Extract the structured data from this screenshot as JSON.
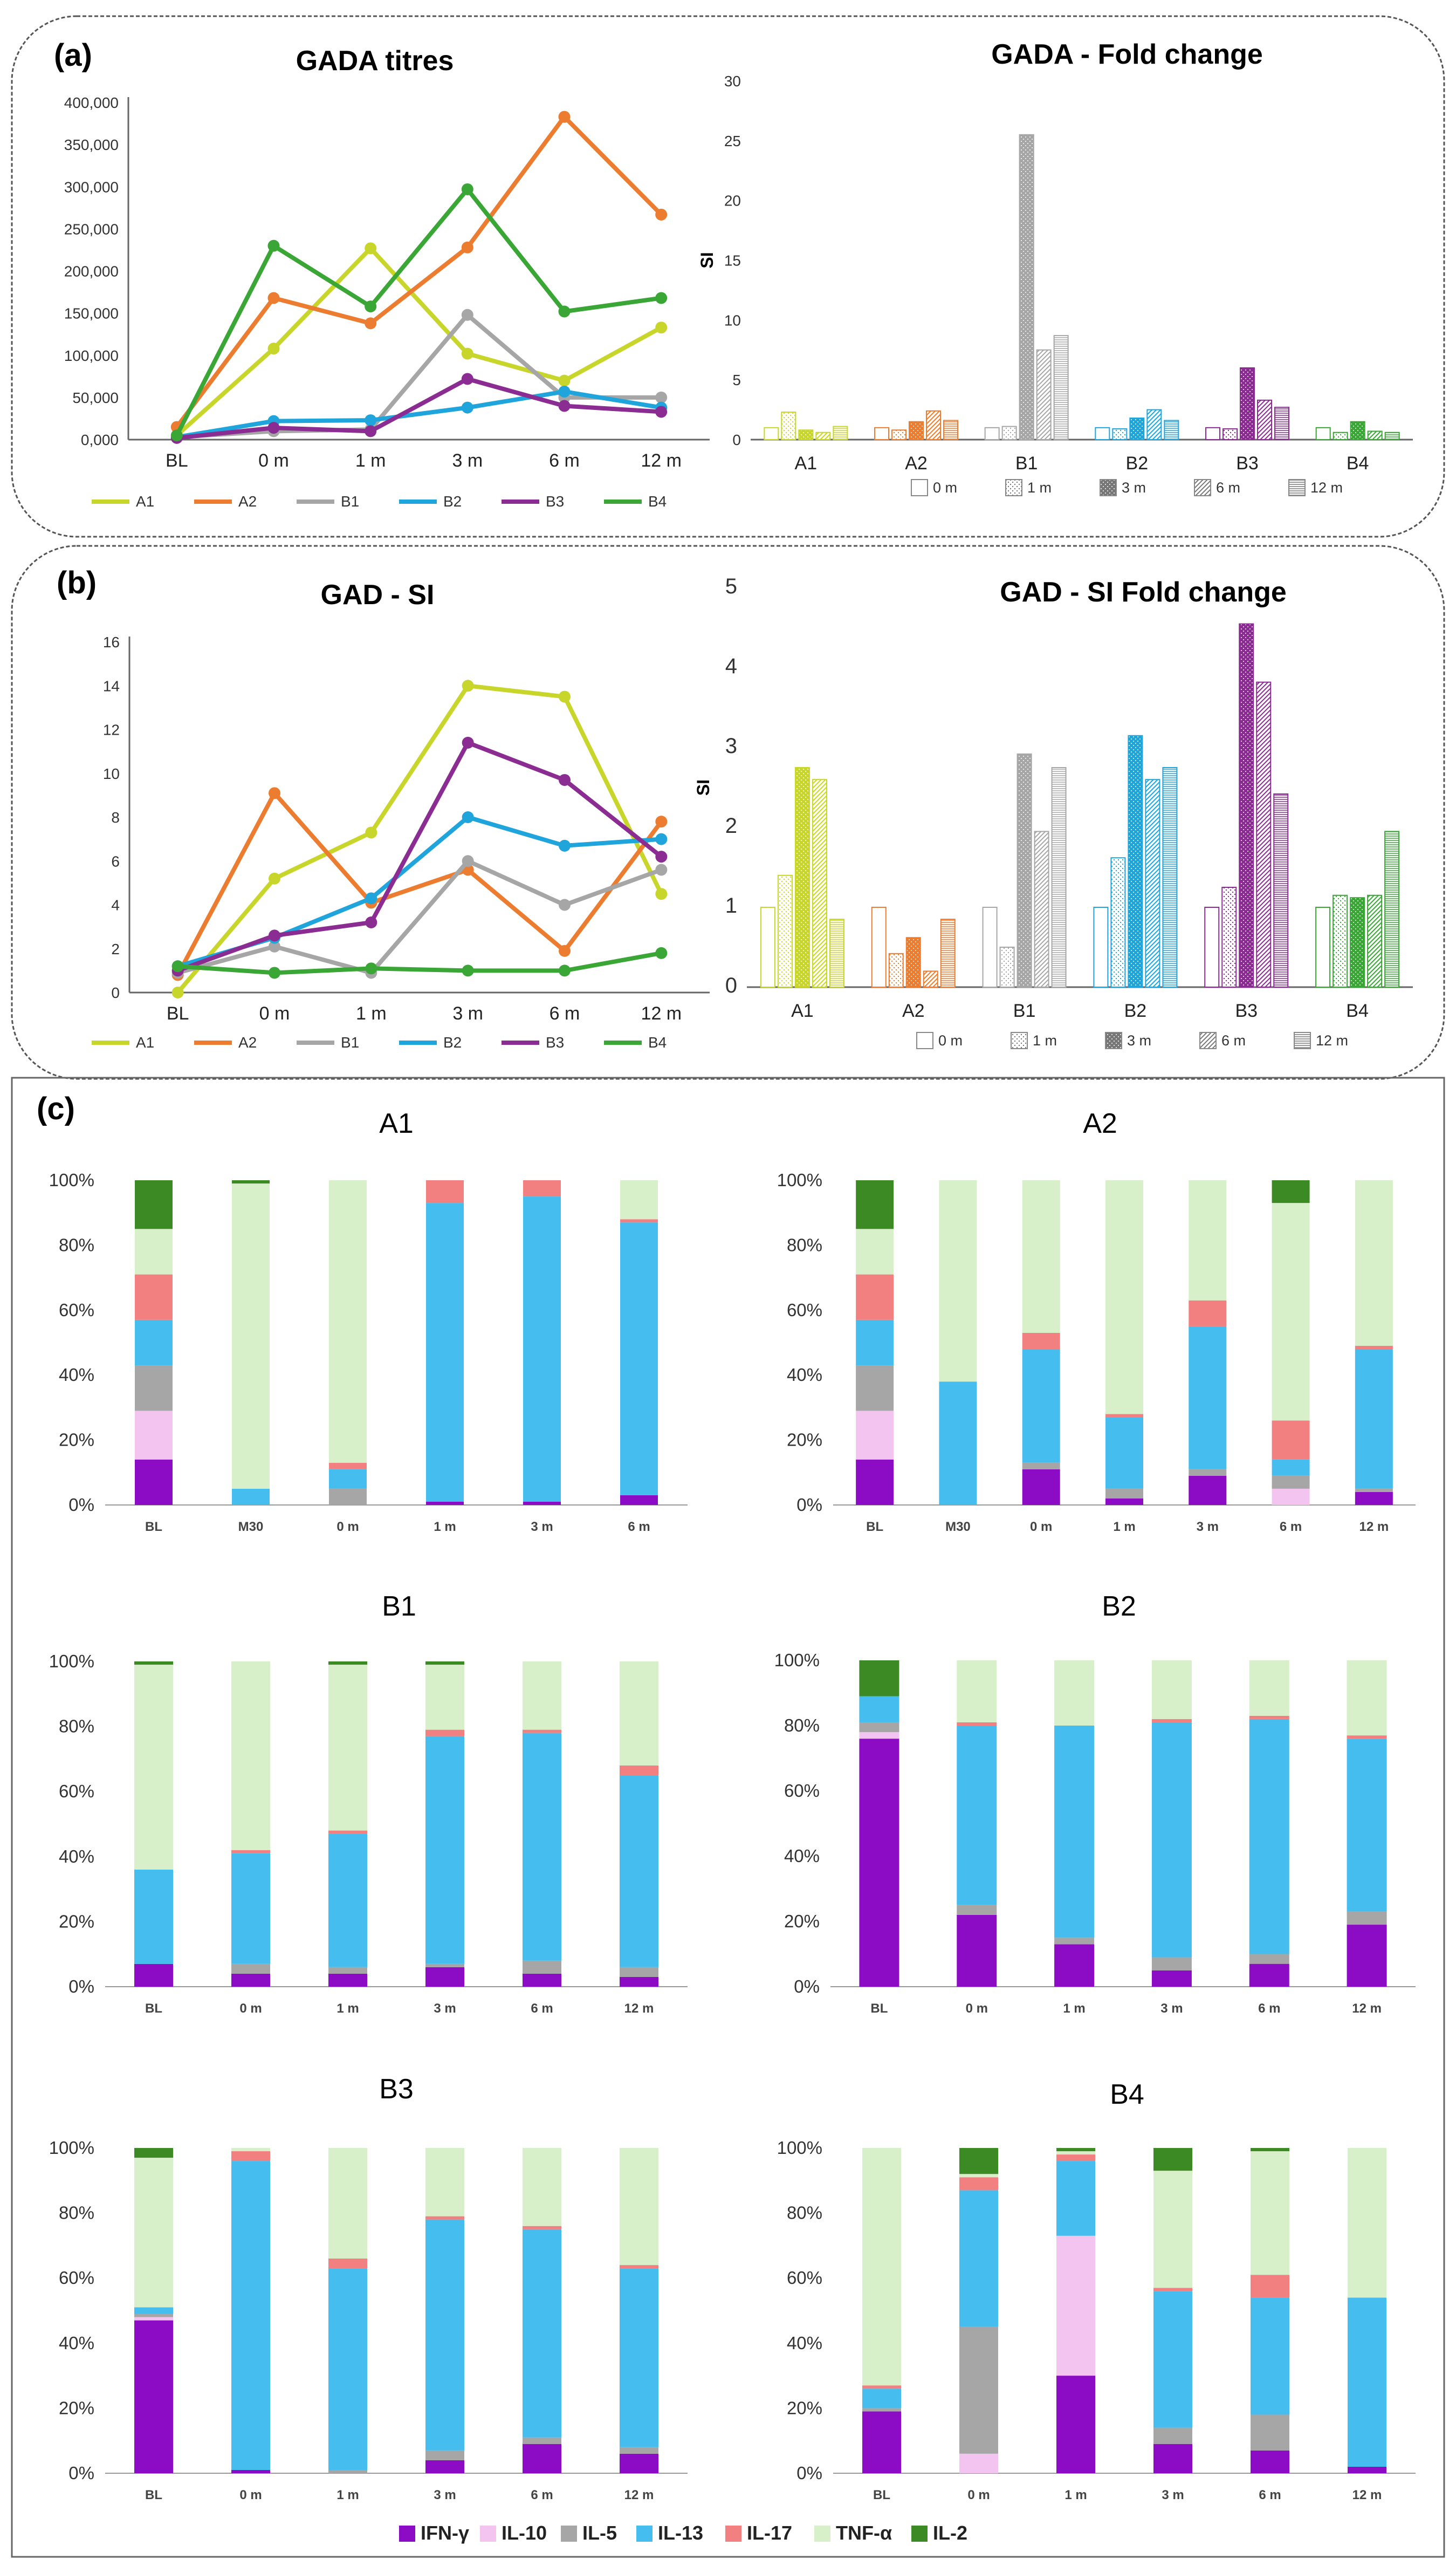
{
  "panels": {
    "a": "(a)",
    "b": "(b)",
    "c": "(c)"
  },
  "colors": {
    "A1": "#c8d62b",
    "A2": "#ec7c30",
    "B1": "#a6a6a6",
    "B2": "#1fa5dc",
    "B3": "#8a2c91",
    "B4": "#3aa635",
    "IFN-γ": "#8b0cc4",
    "IL-10": "#f3c4ef",
    "IL-5": "#a6a6a6",
    "IL-13": "#45bdee",
    "IL-17": "#f28080",
    "TNF-α": "#d8f0c9",
    "IL-2": "#3b8a23"
  },
  "chart_data": [
    {
      "id": "gada-titres",
      "type": "line",
      "title": "GADA titres",
      "categories": [
        "BL",
        "0 m",
        "1 m",
        "3 m",
        "6 m",
        "12 m"
      ],
      "ylim": [
        0,
        400000
      ],
      "yticks": [
        0,
        50000,
        100000,
        150000,
        200000,
        250000,
        300000,
        350000,
        400000
      ],
      "ytick_labels": [
        "0,000",
        "50,000",
        "100,000",
        "150,000",
        "200,000",
        "250,000",
        "300,000",
        "350,000",
        "400,000"
      ],
      "series": [
        {
          "name": "A1",
          "values": [
            5000,
            108000,
            227000,
            102000,
            70000,
            133000
          ]
        },
        {
          "name": "A2",
          "values": [
            15000,
            168000,
            138000,
            228000,
            383000,
            267000
          ]
        },
        {
          "name": "B1",
          "values": [
            3000,
            10000,
            12000,
            148000,
            50000,
            50000
          ]
        },
        {
          "name": "B2",
          "values": [
            3000,
            22000,
            23000,
            38000,
            57000,
            38000
          ]
        },
        {
          "name": "B3",
          "values": [
            2000,
            14000,
            10000,
            72000,
            40000,
            33000
          ]
        },
        {
          "name": "B4",
          "values": [
            5000,
            230000,
            158000,
            297000,
            152000,
            168000
          ]
        }
      ]
    },
    {
      "id": "gada-fold",
      "type": "bar",
      "title": "GADA - Fold change",
      "ylabel": "SI",
      "groups": [
        "A1",
        "A2",
        "B1",
        "B2",
        "B3",
        "B4"
      ],
      "ylim": [
        0,
        30
      ],
      "yticks": [
        0,
        5,
        10,
        15,
        20,
        25,
        30
      ],
      "timepoints": [
        "0 m",
        "1 m",
        "3 m",
        "6 m",
        "12 m"
      ],
      "values": [
        [
          1.0,
          2.3,
          0.8,
          0.6,
          1.1
        ],
        [
          1.0,
          0.8,
          1.5,
          2.4,
          1.6
        ],
        [
          1.0,
          1.1,
          25.5,
          7.5,
          8.7
        ],
        [
          1.0,
          0.9,
          1.8,
          2.5,
          1.6
        ],
        [
          1.0,
          0.9,
          6.0,
          3.3,
          2.7
        ],
        [
          1.0,
          0.6,
          1.5,
          0.7,
          0.6
        ]
      ]
    },
    {
      "id": "gad-si",
      "type": "line",
      "title": "GAD - SI",
      "categories": [
        "BL",
        "0 m",
        "1 m",
        "3 m",
        "6 m",
        "12 m"
      ],
      "ylim": [
        0,
        16
      ],
      "yticks": [
        0,
        2,
        4,
        6,
        8,
        10,
        12,
        14,
        16
      ],
      "ytick_labels": [
        "0",
        "2",
        "4",
        "6",
        "8",
        "10",
        "12",
        "14",
        "16"
      ],
      "series": [
        {
          "name": "A1",
          "values": [
            0.0,
            5.2,
            7.3,
            14.0,
            13.5,
            4.5
          ]
        },
        {
          "name": "A2",
          "values": [
            0.8,
            9.1,
            4.1,
            5.6,
            1.9,
            7.8
          ]
        },
        {
          "name": "B1",
          "values": [
            0.9,
            2.1,
            0.9,
            6.0,
            4.0,
            5.6
          ]
        },
        {
          "name": "B2",
          "values": [
            1.2,
            2.5,
            4.3,
            8.0,
            6.7,
            7.0
          ]
        },
        {
          "name": "B3",
          "values": [
            1.0,
            2.6,
            3.2,
            11.4,
            9.7,
            6.2
          ]
        },
        {
          "name": "B4",
          "values": [
            1.2,
            0.9,
            1.1,
            1.0,
            1.0,
            1.8
          ]
        }
      ]
    },
    {
      "id": "gad-si-fold",
      "type": "bar",
      "title": "GAD - SI Fold change",
      "ylabel": "SI",
      "groups": [
        "A1",
        "A2",
        "B1",
        "B2",
        "B3",
        "B4"
      ],
      "ylim": [
        0,
        5
      ],
      "yticks": [
        0,
        1,
        2,
        3,
        4,
        5
      ],
      "timepoints": [
        "0 m",
        "1 m",
        "3 m",
        "6 m",
        "12 m"
      ],
      "values": [
        [
          1.0,
          1.4,
          2.75,
          2.6,
          0.85
        ],
        [
          1.0,
          0.42,
          0.62,
          0.2,
          0.85
        ],
        [
          1.0,
          0.5,
          2.92,
          1.95,
          2.75
        ],
        [
          1.0,
          1.62,
          3.15,
          2.6,
          2.75
        ],
        [
          1.0,
          1.25,
          4.55,
          3.82,
          2.42
        ],
        [
          1.0,
          1.15,
          1.12,
          1.15,
          1.95
        ]
      ]
    },
    {
      "id": "c-A1",
      "type": "bar",
      "stacked": true,
      "title": "A1",
      "cytokines": [
        "IFN-γ",
        "IL-10",
        "IL-5",
        "IL-13",
        "IL-17",
        "TNF-α",
        "IL-2"
      ],
      "categories": [
        "BL",
        "M30",
        "0 m",
        "1 m",
        "3 m",
        "6 m"
      ],
      "values": [
        [
          14,
          15,
          14,
          14,
          14,
          14,
          15
        ],
        [
          0,
          0,
          0,
          5,
          0,
          94,
          1
        ],
        [
          0,
          0,
          5,
          6,
          2,
          87,
          0
        ],
        [
          1,
          0,
          0,
          92,
          7,
          0,
          0
        ],
        [
          1,
          0,
          0,
          94,
          5,
          0,
          0
        ],
        [
          3,
          0,
          0,
          84,
          1,
          12,
          0
        ]
      ]
    },
    {
      "id": "c-A2",
      "type": "bar",
      "stacked": true,
      "title": "A2",
      "cytokines": [
        "IFN-γ",
        "IL-10",
        "IL-5",
        "IL-13",
        "IL-17",
        "TNF-α",
        "IL-2"
      ],
      "categories": [
        "BL",
        "M30",
        "0 m",
        "1 m",
        "3 m",
        "6 m",
        "12 m"
      ],
      "values": [
        [
          14,
          15,
          14,
          14,
          14,
          14,
          15
        ],
        [
          0,
          0,
          0,
          38,
          0,
          62,
          0
        ],
        [
          11,
          0,
          2,
          35,
          5,
          47,
          0
        ],
        [
          2,
          0,
          3,
          22,
          1,
          72,
          0
        ],
        [
          9,
          0,
          2,
          44,
          8,
          37,
          0
        ],
        [
          0,
          5,
          4,
          5,
          12,
          67,
          7
        ],
        [
          4,
          0,
          1,
          43,
          1,
          51,
          0
        ]
      ]
    },
    {
      "id": "c-B1",
      "type": "bar",
      "stacked": true,
      "title": "B1",
      "cytokines": [
        "IFN-γ",
        "IL-10",
        "IL-5",
        "IL-13",
        "IL-17",
        "TNF-α",
        "IL-2"
      ],
      "categories": [
        "BL",
        "0 m",
        "1 m",
        "3 m",
        "6 m",
        "12 m"
      ],
      "values": [
        [
          7,
          0,
          0,
          29,
          0,
          63,
          1
        ],
        [
          4,
          0,
          3,
          34,
          1,
          58,
          0
        ],
        [
          4,
          0,
          2,
          41,
          1,
          51,
          1
        ],
        [
          6,
          0,
          1,
          70,
          2,
          20,
          1
        ],
        [
          4,
          0,
          4,
          70,
          1,
          21,
          0
        ],
        [
          3,
          0,
          3,
          59,
          3,
          32,
          0
        ]
      ]
    },
    {
      "id": "c-B2",
      "type": "bar",
      "stacked": true,
      "title": "B2",
      "cytokines": [
        "IFN-γ",
        "IL-10",
        "IL-5",
        "IL-13",
        "IL-17",
        "TNF-α",
        "IL-2"
      ],
      "categories": [
        "BL",
        "0 m",
        "1 m",
        "3 m",
        "6 m",
        "12 m"
      ],
      "values": [
        [
          76,
          2,
          3,
          8,
          0,
          0,
          11
        ],
        [
          22,
          0,
          3,
          55,
          1,
          19,
          0
        ],
        [
          13,
          0,
          2,
          65,
          0,
          20,
          0
        ],
        [
          5,
          0,
          4,
          72,
          1,
          18,
          0
        ],
        [
          7,
          0,
          3,
          72,
          1,
          17,
          0
        ],
        [
          19,
          0,
          4,
          53,
          1,
          23,
          0
        ]
      ]
    },
    {
      "id": "c-B3",
      "type": "bar",
      "stacked": true,
      "title": "B3",
      "cytokines": [
        "IFN-γ",
        "IL-10",
        "IL-5",
        "IL-13",
        "IL-17",
        "TNF-α",
        "IL-2"
      ],
      "categories": [
        "BL",
        "0 m",
        "1 m",
        "3 m",
        "6 m",
        "12 m"
      ],
      "values": [
        [
          47,
          1,
          1,
          2,
          0,
          46,
          3
        ],
        [
          1,
          0,
          0,
          95,
          3,
          1,
          0
        ],
        [
          0,
          0,
          1,
          62,
          3,
          34,
          0
        ],
        [
          4,
          0,
          3,
          71,
          1,
          21,
          0
        ],
        [
          9,
          0,
          2,
          64,
          1,
          24,
          0
        ],
        [
          6,
          0,
          2,
          55,
          1,
          36,
          0
        ]
      ]
    },
    {
      "id": "c-B4",
      "type": "bar",
      "stacked": true,
      "title": "B4",
      "cytokines": [
        "IFN-γ",
        "IL-10",
        "IL-5",
        "IL-13",
        "IL-17",
        "TNF-α",
        "IL-2"
      ],
      "categories": [
        "BL",
        "0 m",
        "1 m",
        "3 m",
        "6 m",
        "12 m"
      ],
      "values": [
        [
          19,
          0,
          1,
          6,
          1,
          73,
          0
        ],
        [
          0,
          6,
          39,
          42,
          4,
          1,
          8
        ],
        [
          30,
          43,
          0,
          23,
          2,
          1,
          1
        ],
        [
          9,
          0,
          5,
          42,
          1,
          36,
          7
        ],
        [
          7,
          0,
          11,
          36,
          7,
          38,
          1
        ],
        [
          2,
          0,
          0,
          52,
          0,
          46,
          0
        ]
      ]
    }
  ],
  "legend_cytokines": [
    "IFN-γ",
    "IL-10",
    "IL-5",
    "IL-13",
    "IL-17",
    "TNF-α",
    "IL-2"
  ]
}
